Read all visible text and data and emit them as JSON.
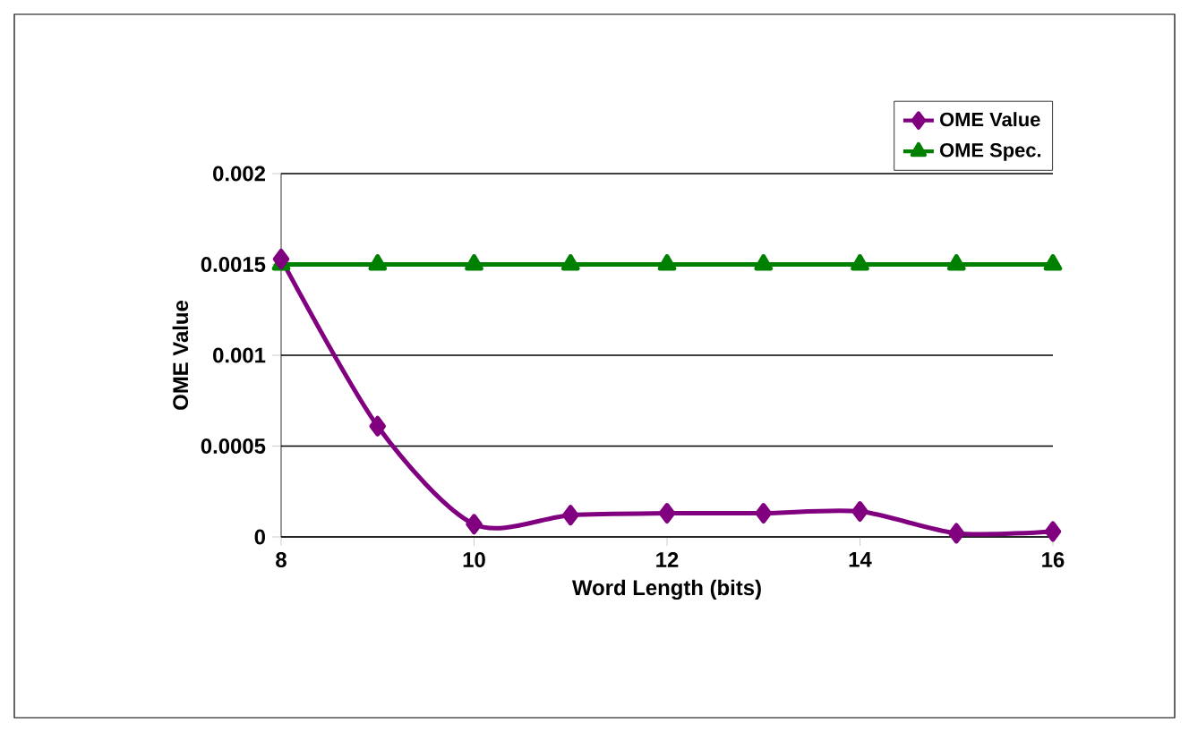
{
  "chart_data": {
    "type": "line",
    "xlabel": "Word Length (bits)",
    "ylabel": "OME Value",
    "x": [
      8,
      9,
      10,
      11,
      12,
      13,
      14,
      15,
      16
    ],
    "series": [
      {
        "name": "OME Value",
        "color": "#800080",
        "marker": "diamond",
        "values": [
          0.00153,
          0.00061,
          7e-05,
          0.00012,
          0.00013,
          0.00013,
          0.00014,
          2e-05,
          3e-05
        ]
      },
      {
        "name": "OME Spec.",
        "color": "#008000",
        "marker": "triangle",
        "values": [
          0.0015,
          0.0015,
          0.0015,
          0.0015,
          0.0015,
          0.0015,
          0.0015,
          0.0015,
          0.0015
        ]
      }
    ],
    "xlim": [
      8,
      16
    ],
    "xticks": [
      8,
      10,
      12,
      14,
      16
    ],
    "ylim": [
      0,
      0.002
    ],
    "yticks": [
      0,
      0.0005,
      0.001,
      0.0015,
      0.002
    ],
    "grid": "y",
    "legend": "top right",
    "line_style": "solid"
  }
}
